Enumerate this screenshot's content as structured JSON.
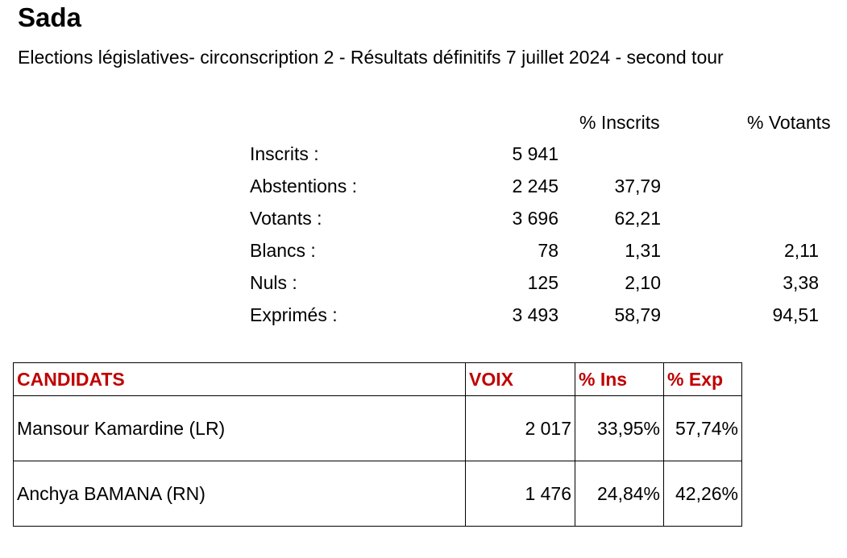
{
  "title": "Sada",
  "subtitle": "Elections législatives- circonscription 2 - Résultats définitifs 7 juillet 2024 - second tour",
  "stats_headers": {
    "pct_inscrits": "% Inscrits",
    "pct_votants": "% Votants"
  },
  "stats": [
    {
      "label": "Inscrits :",
      "count": "5 941",
      "pct_inscrits": "",
      "pct_votants": ""
    },
    {
      "label": "Abstentions :",
      "count": "2 245",
      "pct_inscrits": "37,79",
      "pct_votants": ""
    },
    {
      "label": "Votants :",
      "count": "3 696",
      "pct_inscrits": "62,21",
      "pct_votants": ""
    },
    {
      "label": "Blancs :",
      "count": "78",
      "pct_inscrits": "1,31",
      "pct_votants": "2,11"
    },
    {
      "label": "Nuls :",
      "count": "125",
      "pct_inscrits": "2,10",
      "pct_votants": "3,38"
    },
    {
      "label": "Exprimés :",
      "count": "3 493",
      "pct_inscrits": "58,79",
      "pct_votants": "94,51"
    }
  ],
  "candidates_table": {
    "headers": {
      "candidats": "CANDIDATS",
      "voix": "VOIX",
      "pct_ins": "% Ins",
      "pct_exp": "% Exp"
    },
    "header_color": "#c00000",
    "rows": [
      {
        "name": "Mansour Kamardine (LR)",
        "voix": "2 017",
        "pct_ins": "33,95%",
        "pct_exp": "57,74%"
      },
      {
        "name": "Anchya BAMANA (RN)",
        "voix": "1 476",
        "pct_ins": "24,84%",
        "pct_exp": "42,26%"
      }
    ]
  }
}
